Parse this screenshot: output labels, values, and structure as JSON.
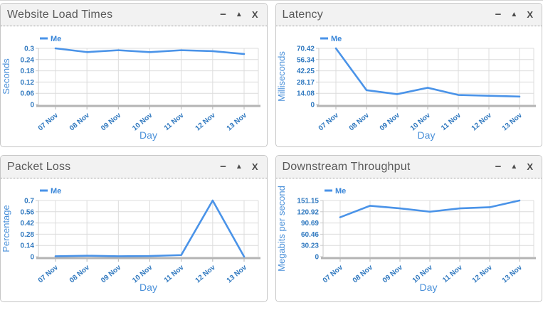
{
  "panel_controls": {
    "minimize_label": "−",
    "collapse_label": "▲",
    "close_label": "X"
  },
  "colors": {
    "line": "#4a93e8",
    "tick_text": "#2f78bf",
    "axis_text": "#4a90d9",
    "legend_text": "#3b87d9",
    "grid": "#dcdcdc",
    "axis_line": "#b4b4b4",
    "y_axis_line": "#c9c9c9",
    "header_bg": "#f2f2f2",
    "header_text": "#595959"
  },
  "chart_data": [
    {
      "type": "line",
      "title": "Website Load Times",
      "xlabel": "Day",
      "ylabel": "Seconds",
      "categories": [
        "07 Nov",
        "08 Nov",
        "09 Nov",
        "10 Nov",
        "11 Nov",
        "12 Nov",
        "13 Nov"
      ],
      "series": [
        {
          "name": "Me",
          "values": [
            0.3,
            0.28,
            0.29,
            0.28,
            0.29,
            0.285,
            0.27
          ]
        }
      ],
      "ylim": [
        0,
        0.3
      ],
      "yticks": [
        "0",
        "0.06",
        "0.12",
        "0.18",
        "0.24",
        "0.3"
      ],
      "grid": true,
      "legend_position": "top-left"
    },
    {
      "type": "line",
      "title": "Latency",
      "xlabel": "Day",
      "ylabel": "Milliseconds",
      "categories": [
        "07 Nov",
        "08 Nov",
        "09 Nov",
        "10 Nov",
        "11 Nov",
        "12 Nov",
        "13 Nov"
      ],
      "series": [
        {
          "name": "Me",
          "values": [
            70.42,
            18,
            13,
            21,
            12,
            11,
            10
          ]
        }
      ],
      "ylim": [
        0,
        70.42
      ],
      "yticks": [
        "0",
        "14.08",
        "28.17",
        "42.25",
        "56.34",
        "70.42"
      ],
      "grid": true,
      "legend_position": "top-left"
    },
    {
      "type": "line",
      "title": "Packet Loss",
      "xlabel": "Day",
      "ylabel": "Percentage",
      "categories": [
        "07 Nov",
        "08 Nov",
        "09 Nov",
        "10 Nov",
        "11 Nov",
        "12 Nov",
        "13 Nov"
      ],
      "series": [
        {
          "name": "Me",
          "values": [
            0.005,
            0.012,
            0.005,
            0.008,
            0.02,
            0.7,
            0
          ]
        }
      ],
      "ylim": [
        0,
        0.7
      ],
      "yticks": [
        "0",
        "0.14",
        "0.28",
        "0.42",
        "0.56",
        "0.7"
      ],
      "grid": true,
      "legend_position": "top-left"
    },
    {
      "type": "line",
      "title": "Downstream Throughput",
      "xlabel": "Day",
      "ylabel": "Megabits per second",
      "categories": [
        "07 Nov",
        "08 Nov",
        "09 Nov",
        "10 Nov",
        "11 Nov",
        "12 Nov",
        "13 Nov"
      ],
      "series": [
        {
          "name": "Me",
          "values": [
            106,
            137,
            130,
            121,
            130,
            133,
            151.15
          ]
        }
      ],
      "ylim": [
        0,
        151.15
      ],
      "yticks": [
        "0",
        "30.23",
        "60.46",
        "90.69",
        "120.92",
        "151.15"
      ],
      "grid": true,
      "legend_position": "top-left"
    }
  ]
}
